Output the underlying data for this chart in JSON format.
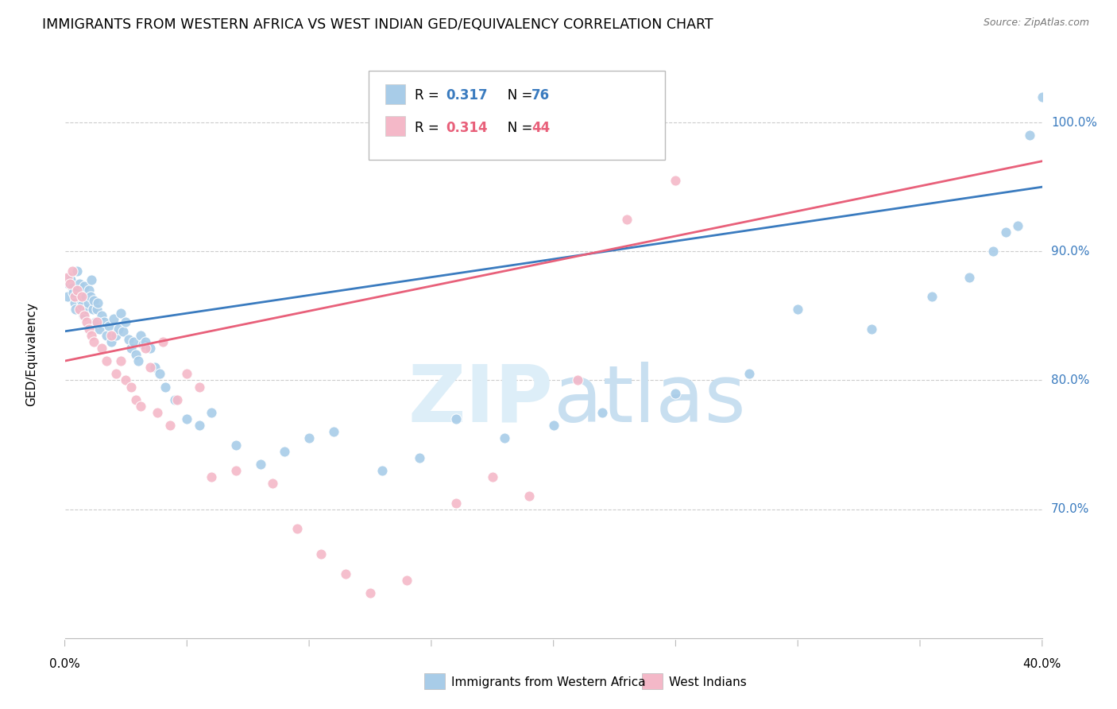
{
  "title": "IMMIGRANTS FROM WESTERN AFRICA VS WEST INDIAN GED/EQUIVALENCY CORRELATION CHART",
  "source": "Source: ZipAtlas.com",
  "ylabel": "GED/Equivalency",
  "yticks": [
    70.0,
    80.0,
    90.0,
    100.0
  ],
  "xmin": 0.0,
  "xmax": 40.0,
  "ymin": 60.0,
  "ymax": 104.0,
  "color_blue": "#a8cce8",
  "color_pink": "#f4b8c8",
  "color_blue_line": "#3a7bbf",
  "color_pink_line": "#e8607a",
  "color_blue_text": "#3a7bbf",
  "color_pink_text": "#e8607a",
  "watermark_color": "#ddeef8",
  "blue_scatter_x": [
    0.1,
    0.15,
    0.2,
    0.25,
    0.3,
    0.35,
    0.4,
    0.45,
    0.5,
    0.55,
    0.6,
    0.65,
    0.7,
    0.75,
    0.8,
    0.85,
    0.9,
    0.95,
    1.0,
    1.05,
    1.1,
    1.15,
    1.2,
    1.25,
    1.3,
    1.35,
    1.4,
    1.5,
    1.6,
    1.7,
    1.8,
    1.9,
    2.0,
    2.1,
    2.2,
    2.3,
    2.4,
    2.5,
    2.6,
    2.7,
    2.8,
    2.9,
    3.0,
    3.1,
    3.2,
    3.3,
    3.5,
    3.7,
    3.9,
    4.1,
    4.5,
    5.0,
    5.5,
    6.0,
    7.0,
    8.0,
    9.0,
    10.0,
    11.0,
    13.0,
    14.5,
    16.0,
    18.0,
    20.0,
    22.0,
    25.0,
    28.0,
    30.0,
    33.0,
    35.5,
    37.0,
    38.0,
    38.5,
    39.0,
    39.5,
    40.0
  ],
  "blue_scatter_y": [
    86.5,
    87.5,
    88.0,
    87.8,
    87.2,
    86.8,
    86.0,
    85.5,
    88.5,
    87.0,
    87.5,
    86.2,
    85.8,
    85.0,
    87.3,
    86.5,
    85.5,
    86.0,
    87.0,
    86.5,
    87.8,
    85.5,
    86.2,
    84.5,
    85.5,
    86.0,
    84.0,
    85.0,
    84.5,
    83.5,
    84.2,
    83.0,
    84.8,
    83.5,
    84.0,
    85.2,
    83.8,
    84.5,
    83.2,
    82.5,
    83.0,
    82.0,
    81.5,
    83.5,
    82.8,
    83.0,
    82.5,
    81.0,
    80.5,
    79.5,
    78.5,
    77.0,
    76.5,
    77.5,
    75.0,
    73.5,
    74.5,
    75.5,
    76.0,
    73.0,
    74.0,
    77.0,
    75.5,
    76.5,
    77.5,
    79.0,
    80.5,
    85.5,
    84.0,
    86.5,
    88.0,
    90.0,
    91.5,
    92.0,
    99.0,
    102.0
  ],
  "pink_scatter_x": [
    0.1,
    0.2,
    0.3,
    0.4,
    0.5,
    0.6,
    0.7,
    0.8,
    0.9,
    1.0,
    1.1,
    1.2,
    1.3,
    1.5,
    1.7,
    1.9,
    2.1,
    2.3,
    2.5,
    2.7,
    2.9,
    3.1,
    3.3,
    3.5,
    3.8,
    4.0,
    4.3,
    4.6,
    5.0,
    5.5,
    6.0,
    7.0,
    8.5,
    9.5,
    10.5,
    11.5,
    12.5,
    14.0,
    16.0,
    17.5,
    19.0,
    21.0,
    23.0,
    25.0
  ],
  "pink_scatter_y": [
    88.0,
    87.5,
    88.5,
    86.5,
    87.0,
    85.5,
    86.5,
    85.0,
    84.5,
    84.0,
    83.5,
    83.0,
    84.5,
    82.5,
    81.5,
    83.5,
    80.5,
    81.5,
    80.0,
    79.5,
    78.5,
    78.0,
    82.5,
    81.0,
    77.5,
    83.0,
    76.5,
    78.5,
    80.5,
    79.5,
    72.5,
    73.0,
    72.0,
    68.5,
    66.5,
    65.0,
    63.5,
    64.5,
    70.5,
    72.5,
    71.0,
    80.0,
    92.5,
    95.5
  ],
  "blue_line_x0": 0.0,
  "blue_line_x1": 40.0,
  "blue_line_y0": 83.8,
  "blue_line_y1": 95.0,
  "pink_line_x0": 0.0,
  "pink_line_x1": 40.0,
  "pink_line_y0": 81.5,
  "pink_line_y1": 97.0
}
